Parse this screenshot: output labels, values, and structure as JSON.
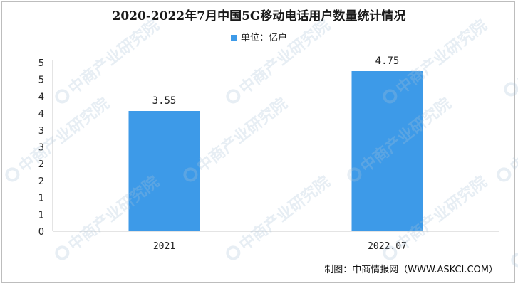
{
  "chart_data": {
    "type": "bar",
    "title": "2020-2022年7月中国5G移动电话用户数量统计情况",
    "legend": {
      "label": "单位：亿户",
      "position": "top-center"
    },
    "categories": [
      "2021",
      "2022.07"
    ],
    "values": [
      3.55,
      4.75
    ],
    "data_labels": [
      "3.55",
      "4.75"
    ],
    "y_ticks": [
      "0",
      "1",
      "1",
      "2",
      "2",
      "3",
      "3",
      "4",
      "4",
      "5",
      "5"
    ],
    "ylim": [
      0,
      5
    ],
    "grid": false,
    "bar_color": "#3d9ae8",
    "axis_color": "#c8c8c8"
  },
  "source": "制图：中商情报网（WWW.ASKCI.COM）",
  "watermark": {
    "text": "中商产业研究院"
  }
}
